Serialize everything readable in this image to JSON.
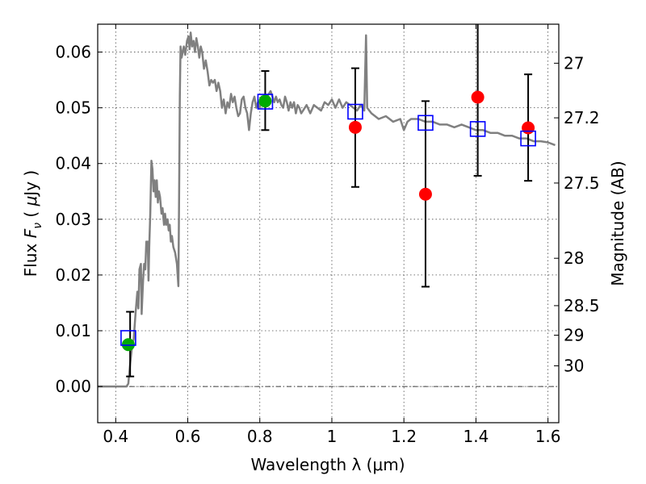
{
  "chart_data": {
    "type": "line",
    "xlabel": "Wavelength  λ (μm)",
    "ylabel": "Flux  F_ν  ( μJy )",
    "y2label": "Magnitude (AB)",
    "xlim": [
      0.35,
      1.63
    ],
    "ylim": [
      -0.0065,
      0.065
    ],
    "x_ticks": [
      0.4,
      0.6,
      0.8,
      1.0,
      1.2,
      1.4,
      1.6
    ],
    "x_tick_labels": [
      "0.4",
      "0.6",
      "0.8",
      "1",
      "1.2",
      "1.4",
      "1.6"
    ],
    "y_ticks": [
      0.0,
      0.01,
      0.02,
      0.03,
      0.04,
      0.05,
      0.06
    ],
    "y_tick_labels": [
      "0.00",
      "0.01",
      "0.02",
      "0.03",
      "0.04",
      "0.05",
      "0.06"
    ],
    "y2_ticks": [
      {
        "label": "27",
        "flux": 0.058
      },
      {
        "label": "27.2",
        "flux": 0.0482
      },
      {
        "label": "27.5",
        "flux": 0.0365
      },
      {
        "label": "28",
        "flux": 0.023
      },
      {
        "label": "28.5",
        "flux": 0.0145
      },
      {
        "label": "29",
        "flux": 0.0092
      },
      {
        "label": "30",
        "flux": 0.0037
      }
    ],
    "grid": true,
    "series": [
      {
        "kind": "line",
        "color": "#808080",
        "points": [
          [
            0.35,
            0.0
          ],
          [
            0.43,
            0.0
          ],
          [
            0.435,
            0.0005
          ],
          [
            0.44,
            0.004
          ],
          [
            0.445,
            0.007
          ],
          [
            0.45,
            0.0085
          ],
          [
            0.455,
            0.013
          ],
          [
            0.46,
            0.017
          ],
          [
            0.463,
            0.014
          ],
          [
            0.466,
            0.021
          ],
          [
            0.47,
            0.022
          ],
          [
            0.472,
            0.013
          ],
          [
            0.476,
            0.019
          ],
          [
            0.479,
            0.022
          ],
          [
            0.482,
            0.021
          ],
          [
            0.485,
            0.026
          ],
          [
            0.487,
            0.025
          ],
          [
            0.489,
            0.026
          ],
          [
            0.491,
            0.019
          ],
          [
            0.493,
            0.025
          ],
          [
            0.496,
            0.031
          ],
          [
            0.499,
            0.0405
          ],
          [
            0.502,
            0.039
          ],
          [
            0.505,
            0.035
          ],
          [
            0.508,
            0.037
          ],
          [
            0.511,
            0.034
          ],
          [
            0.514,
            0.037
          ],
          [
            0.517,
            0.033
          ],
          [
            0.52,
            0.035
          ],
          [
            0.523,
            0.034
          ],
          [
            0.527,
            0.031
          ],
          [
            0.53,
            0.032
          ],
          [
            0.534,
            0.029
          ],
          [
            0.537,
            0.031
          ],
          [
            0.54,
            0.029
          ],
          [
            0.544,
            0.03
          ],
          [
            0.547,
            0.028
          ],
          [
            0.55,
            0.029
          ],
          [
            0.553,
            0.026
          ],
          [
            0.556,
            0.027
          ],
          [
            0.56,
            0.025
          ],
          [
            0.565,
            0.024
          ],
          [
            0.57,
            0.022
          ],
          [
            0.574,
            0.018
          ],
          [
            0.576,
            0.034
          ],
          [
            0.578,
            0.052
          ],
          [
            0.58,
            0.061
          ],
          [
            0.583,
            0.059
          ],
          [
            0.586,
            0.06
          ],
          [
            0.589,
            0.061
          ],
          [
            0.593,
            0.0595
          ],
          [
            0.598,
            0.062
          ],
          [
            0.602,
            0.0628
          ],
          [
            0.605,
            0.0605
          ],
          [
            0.608,
            0.0635
          ],
          [
            0.612,
            0.061
          ],
          [
            0.616,
            0.062
          ],
          [
            0.62,
            0.06
          ],
          [
            0.624,
            0.0625
          ],
          [
            0.628,
            0.061
          ],
          [
            0.632,
            0.059
          ],
          [
            0.636,
            0.061
          ],
          [
            0.64,
            0.06
          ],
          [
            0.645,
            0.057
          ],
          [
            0.65,
            0.0585
          ],
          [
            0.655,
            0.0565
          ],
          [
            0.66,
            0.054
          ],
          [
            0.665,
            0.055
          ],
          [
            0.67,
            0.0545
          ],
          [
            0.675,
            0.055
          ],
          [
            0.68,
            0.053
          ],
          [
            0.685,
            0.0545
          ],
          [
            0.69,
            0.053
          ],
          [
            0.695,
            0.05
          ],
          [
            0.7,
            0.0515
          ],
          [
            0.705,
            0.049
          ],
          [
            0.71,
            0.051
          ],
          [
            0.715,
            0.05
          ],
          [
            0.72,
            0.0525
          ],
          [
            0.725,
            0.051
          ],
          [
            0.73,
            0.052
          ],
          [
            0.735,
            0.05
          ],
          [
            0.74,
            0.0485
          ],
          [
            0.745,
            0.049
          ],
          [
            0.75,
            0.0515
          ],
          [
            0.755,
            0.052
          ],
          [
            0.76,
            0.05
          ],
          [
            0.765,
            0.049
          ],
          [
            0.77,
            0.046
          ],
          [
            0.775,
            0.049
          ],
          [
            0.78,
            0.051
          ],
          [
            0.785,
            0.052
          ],
          [
            0.79,
            0.05
          ],
          [
            0.795,
            0.051
          ],
          [
            0.8,
            0.05
          ],
          [
            0.805,
            0.052
          ],
          [
            0.81,
            0.052
          ],
          [
            0.815,
            0.051
          ],
          [
            0.82,
            0.052
          ],
          [
            0.825,
            0.0525
          ],
          [
            0.83,
            0.053
          ],
          [
            0.835,
            0.052
          ],
          [
            0.84,
            0.051
          ],
          [
            0.845,
            0.052
          ],
          [
            0.85,
            0.051
          ],
          [
            0.855,
            0.0515
          ],
          [
            0.86,
            0.0505
          ],
          [
            0.865,
            0.05
          ],
          [
            0.87,
            0.052
          ],
          [
            0.875,
            0.051
          ],
          [
            0.88,
            0.0495
          ],
          [
            0.885,
            0.051
          ],
          [
            0.89,
            0.05
          ],
          [
            0.895,
            0.051
          ],
          [
            0.9,
            0.049
          ],
          [
            0.905,
            0.0505
          ],
          [
            0.91,
            0.05
          ],
          [
            0.915,
            0.049
          ],
          [
            0.92,
            0.0495
          ],
          [
            0.93,
            0.0505
          ],
          [
            0.94,
            0.049
          ],
          [
            0.95,
            0.0505
          ],
          [
            0.96,
            0.05
          ],
          [
            0.97,
            0.0495
          ],
          [
            0.98,
            0.051
          ],
          [
            0.99,
            0.0505
          ],
          [
            1.0,
            0.0515
          ],
          [
            1.01,
            0.05
          ],
          [
            1.02,
            0.0515
          ],
          [
            1.03,
            0.05
          ],
          [
            1.04,
            0.051
          ],
          [
            1.05,
            0.0505
          ],
          [
            1.06,
            0.05
          ],
          [
            1.07,
            0.0495
          ],
          [
            1.08,
            0.0505
          ],
          [
            1.085,
            0.05
          ],
          [
            1.09,
            0.0495
          ],
          [
            1.095,
            0.063
          ],
          [
            1.098,
            0.05
          ],
          [
            1.11,
            0.049
          ],
          [
            1.13,
            0.048
          ],
          [
            1.15,
            0.0485
          ],
          [
            1.17,
            0.0475
          ],
          [
            1.19,
            0.048
          ],
          [
            1.2,
            0.046
          ],
          [
            1.21,
            0.0475
          ],
          [
            1.22,
            0.048
          ],
          [
            1.24,
            0.048
          ],
          [
            1.26,
            0.0475
          ],
          [
            1.28,
            0.0475
          ],
          [
            1.3,
            0.047
          ],
          [
            1.32,
            0.047
          ],
          [
            1.34,
            0.0465
          ],
          [
            1.36,
            0.047
          ],
          [
            1.38,
            0.0465
          ],
          [
            1.4,
            0.046
          ],
          [
            1.42,
            0.046
          ],
          [
            1.44,
            0.0455
          ],
          [
            1.46,
            0.0455
          ],
          [
            1.48,
            0.045
          ],
          [
            1.5,
            0.045
          ],
          [
            1.52,
            0.0445
          ],
          [
            1.54,
            0.0445
          ],
          [
            1.56,
            0.044
          ],
          [
            1.58,
            0.044
          ],
          [
            1.6,
            0.0438
          ],
          [
            1.62,
            0.0433
          ]
        ]
      },
      {
        "kind": "model_points",
        "marker": "open-square",
        "color": "#0000ff",
        "points": [
          [
            0.435,
            0.0087
          ],
          [
            0.815,
            0.0511
          ],
          [
            1.065,
            0.0493
          ],
          [
            1.26,
            0.0473
          ],
          [
            1.405,
            0.0462
          ],
          [
            1.545,
            0.0445
          ]
        ]
      },
      {
        "kind": "observed_points",
        "marker": "filled-circle",
        "color": "#00aa00",
        "points": [
          [
            0.435,
            0.0075
          ],
          [
            0.815,
            0.0512
          ]
        ]
      },
      {
        "kind": "observed_points",
        "marker": "filled-circle",
        "color": "#ff0000",
        "points": [
          [
            1.065,
            0.0465
          ],
          [
            1.26,
            0.0345
          ],
          [
            1.405,
            0.0519
          ],
          [
            1.545,
            0.0464
          ]
        ]
      },
      {
        "kind": "errorbars",
        "color": "#000000",
        "bars": [
          {
            "x": 0.44,
            "low": 0.0018,
            "high": 0.0134
          },
          {
            "x": 0.815,
            "low": 0.046,
            "high": 0.0566
          },
          {
            "x": 1.065,
            "low": 0.0358,
            "high": 0.0571
          },
          {
            "x": 1.26,
            "low": 0.0179,
            "high": 0.0512
          },
          {
            "x": 1.405,
            "low": 0.0378,
            "high": 0.065
          },
          {
            "x": 1.545,
            "low": 0.0369,
            "high": 0.056
          }
        ]
      }
    ]
  }
}
